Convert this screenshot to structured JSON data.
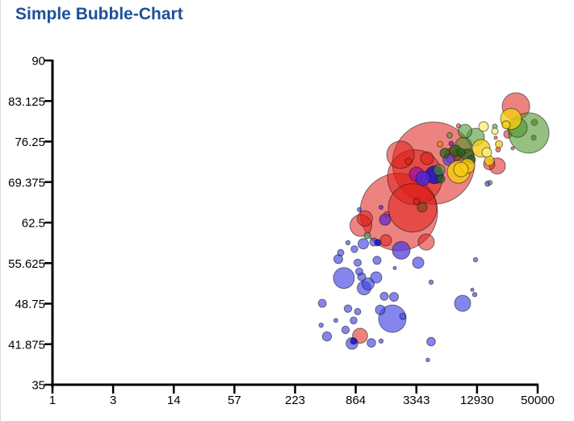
{
  "title": "Simple Bubble-Chart",
  "background": "#ffffff",
  "title_color": "#1d5199",
  "chart_data": {
    "type": "scatter",
    "title": "Simple Bubble-Chart",
    "xlabel": "",
    "ylabel": "",
    "grid": false,
    "legend": false,
    "x_axis": {
      "scale": "log",
      "min": 1,
      "max": 50000,
      "tick_labels": [
        "1",
        "3",
        "14",
        "57",
        "223",
        "864",
        "3343",
        "12930",
        "50000"
      ]
    },
    "y_axis": {
      "scale": "linear",
      "min": 35,
      "max": 90,
      "tick_labels": [
        "90",
        "83.125",
        "76.25",
        "69.375",
        "62.5",
        "55.625",
        "48.75",
        "41.875",
        "35"
      ]
    },
    "point_format": "[x_value, y_value, radius_px]",
    "stroke": "rgba(20,20,20,0.55)",
    "series": [
      {
        "name": "red",
        "color": "rgba(222,30,24,0.55)",
        "points": [
          [
            4903,
            72.6,
            51
          ],
          [
            2261,
            64.3,
            48
          ],
          [
            3241,
            70.2,
            34
          ],
          [
            3070,
            65.0,
            30
          ],
          [
            2343,
            74.0,
            17
          ],
          [
            30790,
            82.2,
            17
          ],
          [
            970,
            62.0,
            13.5
          ],
          [
            20340,
            72.1,
            10
          ],
          [
            7554,
            73.9,
            10
          ],
          [
            4169,
            59.2,
            10
          ],
          [
            1061,
            63.2,
            9.5
          ],
          [
            953,
            43.3,
            9.3
          ],
          [
            4245,
            73.4,
            8
          ],
          [
            16990,
            72.4,
            7
          ],
          [
            1695,
            59.5,
            7
          ],
          [
            25700,
            77.5,
            5
          ],
          [
            2806,
            72.9,
            4
          ],
          [
            3360,
            66.1,
            4
          ],
          [
            1726,
            63.9,
            3.5
          ],
          [
            20710,
            74.9,
            3
          ],
          [
            8569,
            78.9,
            2.7
          ],
          [
            28630,
            75.1,
            2
          ],
          [
            19620,
            76.9,
            2
          ]
        ]
      },
      {
        "name": "brown",
        "color": "rgba(125,75,25,0.7)",
        "points": [
          [
            8266,
            73.9,
            6
          ],
          [
            3810,
            65.1,
            6
          ],
          [
            46540,
            79.5,
            4
          ],
          [
            45720,
            76.9,
            3.3
          ]
        ]
      },
      {
        "name": "blue",
        "color": "rgba(68,68,230,0.65)",
        "points": [
          [
            1958,
            46.2,
            17
          ],
          [
            665,
            53.1,
            13
          ],
          [
            9375,
            48.8,
            10
          ],
          [
            1042,
            51.4,
            8.5
          ],
          [
            1141,
            52.1,
            7.5
          ],
          [
            796,
            42.0,
            7.3
          ],
          [
            6903,
            73.2,
            7.3
          ],
          [
            3483,
            55.7,
            7
          ],
          [
            1366,
            53.2,
            7
          ],
          [
            1024,
            58.9,
            6.5
          ],
          [
            1494,
            47.7,
            6
          ],
          [
            455,
            43.2,
            5.7
          ],
          [
            586,
            56.3,
            5.5
          ],
          [
            2030,
            49.9,
            5.5
          ],
          [
            4645,
            42.3,
            5.3
          ],
          [
            1226,
            42.1,
            5.3
          ],
          [
            1294,
            59.2,
            5
          ],
          [
            988,
            53.3,
            5
          ],
          [
            1390,
            56.1,
            5
          ],
          [
            1635,
            50.0,
            5
          ],
          [
            410,
            48.8,
            5
          ],
          [
            727,
            47.9,
            4.7
          ],
          [
            689,
            44.3,
            4.7
          ],
          [
            903,
            55.7,
            4.5
          ],
          [
            936,
            54.2,
            4.5
          ],
          [
            840,
            58.0,
            4.3
          ],
          [
            825,
            45.9,
            4.3
          ],
          [
            618,
            57.4,
            4
          ],
          [
            903,
            47.4,
            4
          ],
          [
            2474,
            46.6,
            4
          ],
          [
            16390,
            69.1,
            3.3
          ],
          [
            727,
            59.1,
            2.7
          ],
          [
            4645,
            52.4,
            2.7
          ],
          [
            12510,
            56.2,
            2.7
          ],
          [
            12285,
            50.3,
            2.7
          ],
          [
            400,
            45.1,
            2.7
          ],
          [
            1521,
            42.4,
            2.7
          ],
          [
            936,
            64.7,
            2.5
          ],
          [
            555,
            45.9,
            2.5
          ],
          [
            4322,
            39.2,
            2.3
          ],
          [
            2067,
            54.8,
            2
          ],
          [
            11640,
            51.1,
            2
          ]
        ]
      },
      {
        "name": "dark-blue",
        "color": "rgba(22,22,195,0.85)",
        "points": [
          [
            4993,
            70.6,
            11
          ],
          [
            1416,
            59.1,
            4
          ],
          [
            825,
            42.4,
            4
          ]
        ]
      },
      {
        "name": "blue-violet",
        "color": "rgba(80,60,220,0.75)",
        "points": [
          [
            2386,
            57.8,
            11
          ]
        ]
      },
      {
        "name": "purple",
        "color": "rgba(110,45,200,0.8)",
        "points": [
          [
            1665,
            63.0,
            7
          ],
          [
            7287,
            75.9,
            3
          ],
          [
            1521,
            65.1,
            2.5
          ]
        ]
      },
      {
        "name": "magenta",
        "color": "rgba(165,20,155,0.8)",
        "points": [
          [
            3360,
            70.7,
            9
          ]
        ]
      },
      {
        "name": "indigo",
        "color": "rgba(78,38,215,0.85)",
        "points": [
          [
            3879,
            70.0,
            9
          ]
        ]
      },
      {
        "name": "teal",
        "color": "rgba(95,155,100,0.85)",
        "points": [
          [
            1120,
            60.3,
            4
          ]
        ]
      },
      {
        "name": "green",
        "color": "rgba(80,150,45,0.6)",
        "points": [
          [
            41040,
            77.7,
            25
          ],
          [
            31900,
            78.6,
            12
          ],
          [
            12510,
            77.0,
            11
          ],
          [
            9545,
            75.6,
            10
          ],
          [
            9900,
            78.0,
            8.5
          ],
          [
            5562,
            71.4,
            7
          ],
          [
            7030,
            77.3,
            3.5
          ],
          [
            19270,
            78.8,
            3
          ],
          [
            17300,
            69.3,
            2.7
          ]
        ]
      },
      {
        "name": "dark-green",
        "color": "rgba(42,100,28,0.75)",
        "points": [
          [
            10445,
            73.9,
            8
          ],
          [
            7973,
            74.7,
            7
          ],
          [
            6310,
            74.3,
            6
          ],
          [
            11430,
            73.2,
            5
          ],
          [
            5766,
            69.9,
            5
          ],
          [
            9044,
            74.4,
            5
          ]
        ]
      },
      {
        "name": "yellow",
        "color": "rgba(245,205,20,0.8)",
        "points": [
          [
            8569,
            71.1,
            14
          ],
          [
            27620,
            80.1,
            13
          ],
          [
            14190,
            75.1,
            11
          ],
          [
            10445,
            72.1,
            9
          ],
          [
            9044,
            71.5,
            9
          ],
          [
            16990,
            73.0,
            6
          ],
          [
            24790,
            79.1,
            5
          ],
          [
            21090,
            75.8,
            4.5
          ]
        ]
      },
      {
        "name": "pale-yellow",
        "color": "rgba(246,240,130,0.85)",
        "points": [
          [
            14970,
            78.8,
            6
          ],
          [
            16090,
            74.4,
            6
          ],
          [
            19270,
            78.0,
            4
          ]
        ]
      },
      {
        "name": "orange",
        "color": "rgba(245,128,30,0.8)",
        "points": [
          [
            5663,
            75.8,
            3.5
          ]
        ]
      }
    ]
  }
}
